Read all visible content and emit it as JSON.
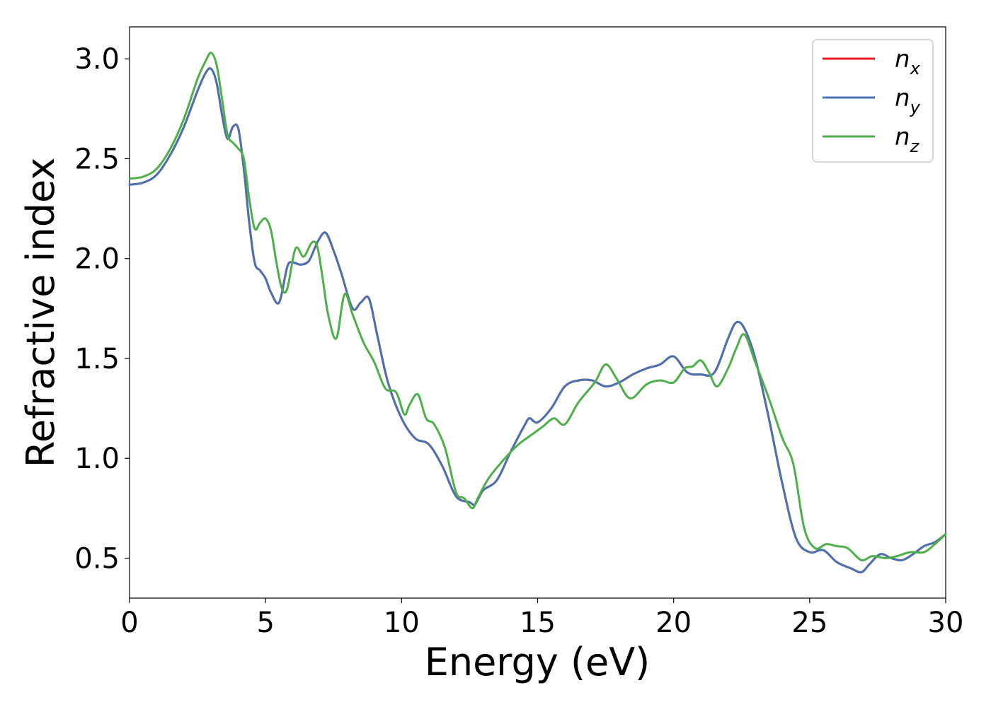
{
  "chart_data": {
    "type": "line",
    "xlabel": "Energy (eV)",
    "ylabel": "Refractive index",
    "xlim": [
      0,
      30
    ],
    "ylim": [
      0.3,
      3.16
    ],
    "xticks": [
      "0",
      "5",
      "10",
      "15",
      "20",
      "25",
      "30"
    ],
    "yticks": [
      "0.5",
      "1.0",
      "1.5",
      "2.0",
      "2.5",
      "3.0"
    ],
    "grid": false,
    "legend_position": "top-right",
    "series": [
      {
        "name": "n_x",
        "label_base": "n",
        "label_sub": "x",
        "color": "#e41a1c",
        "x": [
          0,
          0.5,
          1,
          1.5,
          2,
          2.5,
          2.8,
          3,
          3.2,
          3.4,
          3.6,
          3.8,
          4,
          4.2,
          4.4,
          4.6,
          4.8,
          5,
          5.2,
          5.5,
          5.8,
          6,
          6.3,
          6.6,
          6.9,
          7.2,
          7.5,
          7.8,
          8.2,
          8.5,
          8.8,
          9.1,
          9.5,
          10,
          10.5,
          11,
          11.5,
          12,
          12.5,
          12.7,
          13,
          13.5,
          14,
          14.5,
          14.7,
          15,
          15.5,
          16,
          16.5,
          17,
          17.5,
          18,
          18.5,
          19,
          19.5,
          20,
          20.5,
          21,
          21.5,
          22,
          22.3,
          22.6,
          23,
          23.5,
          24,
          24.5,
          25,
          25.5,
          26,
          26.5,
          26.9,
          27.2,
          27.6,
          28,
          28.4,
          28.8,
          29.2,
          29.6,
          30
        ],
        "values": [
          2.37,
          2.38,
          2.42,
          2.52,
          2.66,
          2.84,
          2.93,
          2.95,
          2.88,
          2.72,
          2.6,
          2.66,
          2.65,
          2.45,
          2.18,
          1.98,
          1.94,
          1.9,
          1.83,
          1.78,
          1.96,
          1.98,
          1.97,
          1.99,
          2.08,
          2.13,
          2.04,
          1.92,
          1.75,
          1.78,
          1.8,
          1.62,
          1.38,
          1.2,
          1.1,
          1.07,
          0.96,
          0.81,
          0.78,
          0.77,
          0.84,
          0.89,
          1.03,
          1.16,
          1.2,
          1.18,
          1.25,
          1.36,
          1.39,
          1.39,
          1.36,
          1.38,
          1.42,
          1.45,
          1.47,
          1.51,
          1.43,
          1.42,
          1.43,
          1.6,
          1.68,
          1.65,
          1.5,
          1.2,
          0.87,
          0.6,
          0.53,
          0.54,
          0.48,
          0.45,
          0.43,
          0.47,
          0.52,
          0.5,
          0.49,
          0.52,
          0.56,
          0.58,
          0.62
        ]
      },
      {
        "name": "n_y",
        "label_base": "n",
        "label_sub": "y",
        "color": "#4a72b0",
        "x": [
          0,
          0.5,
          1,
          1.5,
          2,
          2.5,
          2.8,
          3,
          3.2,
          3.4,
          3.6,
          3.8,
          4,
          4.2,
          4.4,
          4.6,
          4.8,
          5,
          5.2,
          5.5,
          5.8,
          6,
          6.3,
          6.6,
          6.9,
          7.2,
          7.5,
          7.8,
          8.2,
          8.5,
          8.8,
          9.1,
          9.5,
          10,
          10.5,
          11,
          11.5,
          12,
          12.5,
          12.7,
          13,
          13.5,
          14,
          14.5,
          14.7,
          15,
          15.5,
          16,
          16.5,
          17,
          17.5,
          18,
          18.5,
          19,
          19.5,
          20,
          20.5,
          21,
          21.5,
          22,
          22.3,
          22.6,
          23,
          23.5,
          24,
          24.5,
          25,
          25.5,
          26,
          26.5,
          26.9,
          27.2,
          27.6,
          28,
          28.4,
          28.8,
          29.2,
          29.6,
          30
        ],
        "values": [
          2.37,
          2.38,
          2.42,
          2.52,
          2.66,
          2.84,
          2.93,
          2.95,
          2.88,
          2.72,
          2.6,
          2.66,
          2.65,
          2.45,
          2.18,
          1.98,
          1.94,
          1.9,
          1.83,
          1.78,
          1.96,
          1.98,
          1.97,
          1.99,
          2.08,
          2.13,
          2.04,
          1.92,
          1.75,
          1.78,
          1.8,
          1.62,
          1.38,
          1.2,
          1.1,
          1.07,
          0.96,
          0.81,
          0.78,
          0.77,
          0.84,
          0.89,
          1.03,
          1.16,
          1.2,
          1.18,
          1.25,
          1.36,
          1.39,
          1.39,
          1.36,
          1.38,
          1.42,
          1.45,
          1.47,
          1.51,
          1.43,
          1.42,
          1.43,
          1.6,
          1.68,
          1.65,
          1.5,
          1.2,
          0.87,
          0.6,
          0.53,
          0.54,
          0.48,
          0.45,
          0.43,
          0.47,
          0.52,
          0.5,
          0.49,
          0.52,
          0.56,
          0.58,
          0.62
        ]
      },
      {
        "name": "n_z",
        "label_base": "n",
        "label_sub": "z",
        "color": "#4daf4a",
        "x": [
          0,
          0.5,
          1,
          1.5,
          2,
          2.5,
          2.8,
          3,
          3.2,
          3.4,
          3.6,
          3.8,
          4,
          4.2,
          4.4,
          4.6,
          4.8,
          5,
          5.2,
          5.4,
          5.6,
          5.8,
          6.1,
          6.4,
          6.7,
          6.9,
          7.1,
          7.3,
          7.6,
          7.9,
          8.2,
          8.6,
          9,
          9.4,
          9.8,
          10.1,
          10.3,
          10.6,
          10.9,
          11.2,
          11.6,
          12,
          12.3,
          12.6,
          12.8,
          13.2,
          13.8,
          14.3,
          14.8,
          15.2,
          15.6,
          16,
          16.5,
          17.1,
          17.5,
          17.9,
          18.4,
          19,
          19.5,
          20,
          20.4,
          20.7,
          21,
          21.3,
          21.6,
          22,
          22.3,
          22.6,
          23,
          23.5,
          24,
          24.4,
          24.8,
          25.2,
          25.6,
          26,
          26.4,
          26.9,
          27.3,
          27.8,
          28.2,
          28.7,
          29.2,
          29.6,
          30
        ],
        "values": [
          2.4,
          2.41,
          2.45,
          2.55,
          2.7,
          2.9,
          2.99,
          3.03,
          2.97,
          2.8,
          2.62,
          2.58,
          2.55,
          2.5,
          2.3,
          2.15,
          2.18,
          2.2,
          2.14,
          1.98,
          1.85,
          1.85,
          2.05,
          2.01,
          2.08,
          2.06,
          1.9,
          1.72,
          1.6,
          1.82,
          1.72,
          1.58,
          1.48,
          1.35,
          1.33,
          1.22,
          1.27,
          1.32,
          1.2,
          1.17,
          1.05,
          0.83,
          0.8,
          0.75,
          0.8,
          0.9,
          1.0,
          1.07,
          1.12,
          1.16,
          1.2,
          1.17,
          1.28,
          1.38,
          1.47,
          1.4,
          1.3,
          1.37,
          1.39,
          1.38,
          1.45,
          1.46,
          1.49,
          1.43,
          1.36,
          1.45,
          1.55,
          1.62,
          1.48,
          1.3,
          1.1,
          0.97,
          0.65,
          0.55,
          0.57,
          0.56,
          0.55,
          0.49,
          0.51,
          0.5,
          0.51,
          0.53,
          0.53,
          0.57,
          0.62
        ]
      }
    ]
  }
}
